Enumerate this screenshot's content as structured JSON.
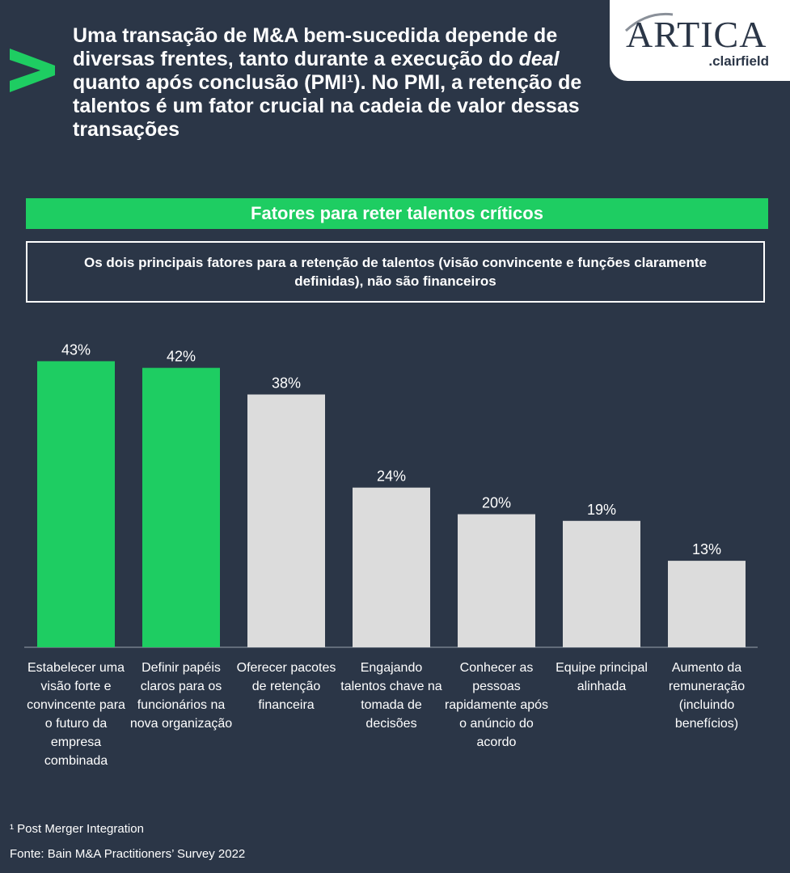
{
  "headline": {
    "part1": "Uma transação de M&A bem-sucedida depende de diversas frentes, tanto durante a execução do ",
    "emphasis": "deal",
    "part2": " quanto após conclusão (PMI¹). No PMI, a retenção de talentos é um fator crucial na cadeia de valor dessas transações"
  },
  "logo": {
    "main": "ARTICA",
    "sub": ".clairfield"
  },
  "banner": "Fatores para reter talentos críticos",
  "callout": "Os dois principais fatores para a retenção de talentos (visão convincente e funções claramente definidas), não são financeiros",
  "colors": {
    "background": "#2b3647",
    "highlight": "#1ecd62",
    "bar_default": "#dcdcdc",
    "chevron": "#1ecd62"
  },
  "chart_data": {
    "type": "bar",
    "categories": [
      "Estabelecer uma visão forte e convincente para o futuro da empresa combinada",
      "Definir papéis claros para os funcionários na nova organização",
      "Oferecer pacotes de retenção financeira",
      "Engajando talentos chave na tomada de decisões",
      "Conhecer as pessoas rapidamente após o anúncio do acordo",
      "Equipe principal alinhada",
      "Aumento da remuneração (incluindo benefícios)"
    ],
    "values": [
      43,
      42,
      38,
      24,
      20,
      19,
      13
    ],
    "value_labels": [
      "43%",
      "42%",
      "38%",
      "24%",
      "20%",
      "19%",
      "13%"
    ],
    "highlighted": [
      true,
      true,
      false,
      false,
      false,
      false,
      false
    ],
    "ylim": [
      0,
      45
    ]
  },
  "footnote": "¹ Post Merger Integration",
  "source": "Fonte: Bain M&A Practitioners’ Survey 2022"
}
